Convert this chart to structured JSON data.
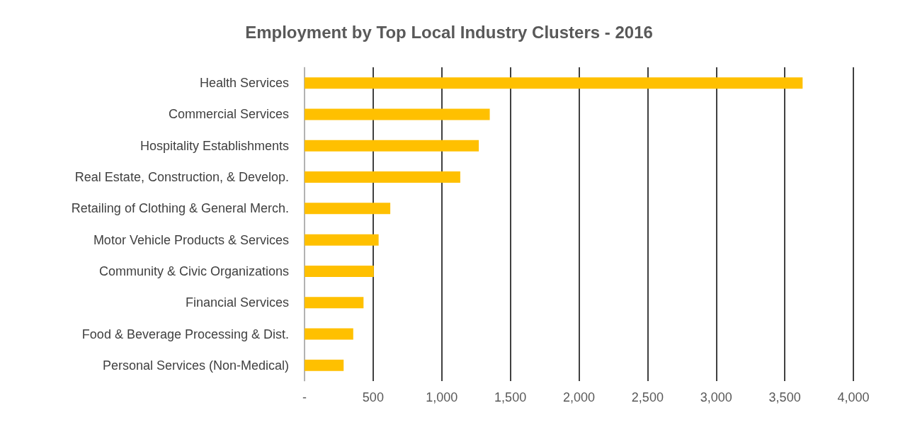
{
  "chart_data": {
    "type": "bar",
    "orientation": "horizontal",
    "title": "Employment by Top Local Industry Clusters - 2016",
    "categories": [
      "Health Services",
      "Commercial Services",
      "Hospitality Establishments",
      "Real Estate, Construction, & Develop.",
      "Retailing of Clothing & General Merch.",
      "Motor Vehicle Products & Services",
      "Community & Civic Organizations",
      "Financial Services",
      "Food & Beverage Processing & Dist.",
      "Personal Services (Non-Medical)"
    ],
    "values": [
      3630,
      1350,
      1270,
      1135,
      625,
      540,
      505,
      430,
      355,
      285
    ],
    "color": "#ffc000",
    "xlim": [
      0,
      4000
    ],
    "xticks": [
      {
        "value": 0,
        "label": "-"
      },
      {
        "value": 500,
        "label": "500"
      },
      {
        "value": 1000,
        "label": "1,000"
      },
      {
        "value": 1500,
        "label": "1,500"
      },
      {
        "value": 2000,
        "label": "2,000"
      },
      {
        "value": 2500,
        "label": "2,500"
      },
      {
        "value": 3000,
        "label": "3,000"
      },
      {
        "value": 3500,
        "label": "3,500"
      },
      {
        "value": 4000,
        "label": "4,000"
      }
    ],
    "grid": "x"
  }
}
